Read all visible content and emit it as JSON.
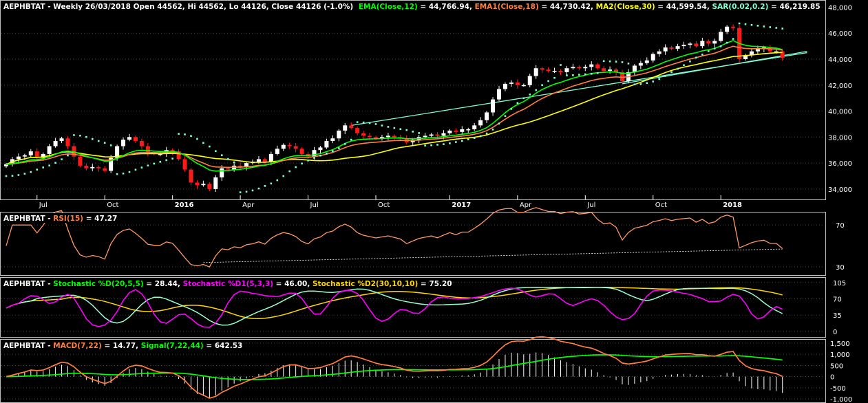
{
  "chart_data": {
    "type": "candlestick",
    "symbol": "AEPHBTAT",
    "price_panel": {
      "header": {
        "prefix": "AEPHBTAT - Weekly 26/03/2018 Open 44562, Hi 44562, Lo 44126, Close 44126 (-1.0%)",
        "indicators": [
          {
            "name": "EMA(Close,12)",
            "value": "44,766.94",
            "color": "#00ff00"
          },
          {
            "name": "EMA1(Close,18)",
            "value": "44,730.42",
            "color": "#ff7f3f"
          },
          {
            "name": "MA2(Close,30)",
            "value": "44,599.54",
            "color": "#ffff00"
          },
          {
            "name": "SAR(0.02,0.2)",
            "value": "46,219.85",
            "color": "#7fffd4"
          }
        ]
      },
      "ylim": [
        33200,
        48500
      ],
      "yticks": [
        34000,
        36000,
        38000,
        40000,
        42000,
        44000,
        46000,
        48000
      ],
      "ytick_labels": [
        "34,000",
        "36,000",
        "38,000",
        "40,000",
        "42,000",
        "44,000",
        "46,000",
        "48,000"
      ],
      "closes": [
        35900,
        36300,
        36500,
        36600,
        36900,
        36400,
        36700,
        37300,
        37700,
        37900,
        37300,
        36500,
        35800,
        35600,
        35700,
        35600,
        35400,
        36400,
        37300,
        37800,
        38000,
        37700,
        37300,
        36800,
        36700,
        36700,
        37000,
        36900,
        36300,
        35500,
        34500,
        34300,
        34400,
        34000,
        34900,
        35600,
        35500,
        35800,
        35700,
        36000,
        36100,
        36300,
        36100,
        36700,
        37100,
        37400,
        37300,
        37100,
        36700,
        36500,
        37000,
        37200,
        37700,
        37900,
        38500,
        38900,
        38700,
        38300,
        38100,
        38000,
        37900,
        38000,
        38100,
        38000,
        37900,
        37600,
        37800,
        38000,
        38100,
        38200,
        38100,
        38300,
        38500,
        38400,
        38600,
        38600,
        38900,
        39300,
        39900,
        40900,
        41700,
        42100,
        42200,
        42000,
        42000,
        42700,
        43300,
        43200,
        43100,
        43100,
        43000,
        43300,
        43400,
        43300,
        43400,
        43600,
        43300,
        43100,
        43200,
        43000,
        42300,
        43000,
        43500,
        43700,
        43900,
        44400,
        44600,
        44900,
        44800,
        45000,
        45100,
        45200,
        45000,
        45400,
        45200,
        45400,
        46100,
        46500,
        46400,
        44000,
        44300,
        44600,
        44800,
        44900,
        44600,
        44600,
        44100
      ],
      "trendlines": [
        {
          "from": [
            "2017-W35",
            38900
          ],
          "to": [
            "2018-W14",
            44500
          ],
          "color": "#7fffd4"
        },
        {
          "from": [
            "2017-W35",
            42100
          ],
          "to": [
            "2018-W14",
            44600
          ],
          "color": "#7fffd4"
        }
      ]
    },
    "x_axis": {
      "labels": [
        "Jul",
        "Oct",
        "2016",
        "Apr",
        "Jul",
        "Oct",
        "2017",
        "Apr",
        "Jul",
        "Oct",
        "2018"
      ],
      "bold": [
        false,
        false,
        true,
        false,
        false,
        false,
        true,
        false,
        false,
        false,
        true
      ]
    },
    "rsi_panel": {
      "header": {
        "prefix": "AEPHBTAT - ",
        "indicators": [
          {
            "name": "RSI(15)",
            "value": "47.27",
            "color": "#ff7f3f"
          }
        ]
      },
      "yticks": [
        30,
        70
      ],
      "ylim": [
        22,
        82
      ]
    },
    "stoch_panel": {
      "header": {
        "prefix": "AEPHBTAT - ",
        "indicators": [
          {
            "name": "Stochastic %D(20,5,5)",
            "value": "28.44",
            "color": "#00ff00"
          },
          {
            "name": "Stochastic %D1(5,3,3)",
            "value": "46.00",
            "color": "#ff00ff"
          },
          {
            "name": "Stochastic %D2(30,10,10)",
            "value": "75.20",
            "color": "#ffd700"
          }
        ]
      },
      "yticks": [
        0,
        35,
        70,
        105
      ],
      "ylim": [
        -12,
        115
      ]
    },
    "macd_panel": {
      "header": {
        "prefix": "AEPHBTAT - ",
        "indicators": [
          {
            "name": "MACD(7,22)",
            "value": "14.77",
            "color": "#ff7f3f"
          },
          {
            "name": "Signal(7,22,44)",
            "value": "642.53",
            "color": "#00ff00"
          }
        ]
      },
      "yticks": [
        -1000,
        -500,
        0,
        500,
        1000,
        1500
      ],
      "ytick_labels": [
        "-1,000",
        "-500",
        "0",
        "500",
        "1,000",
        "1,500"
      ],
      "ylim": [
        -1150,
        1650
      ]
    }
  }
}
